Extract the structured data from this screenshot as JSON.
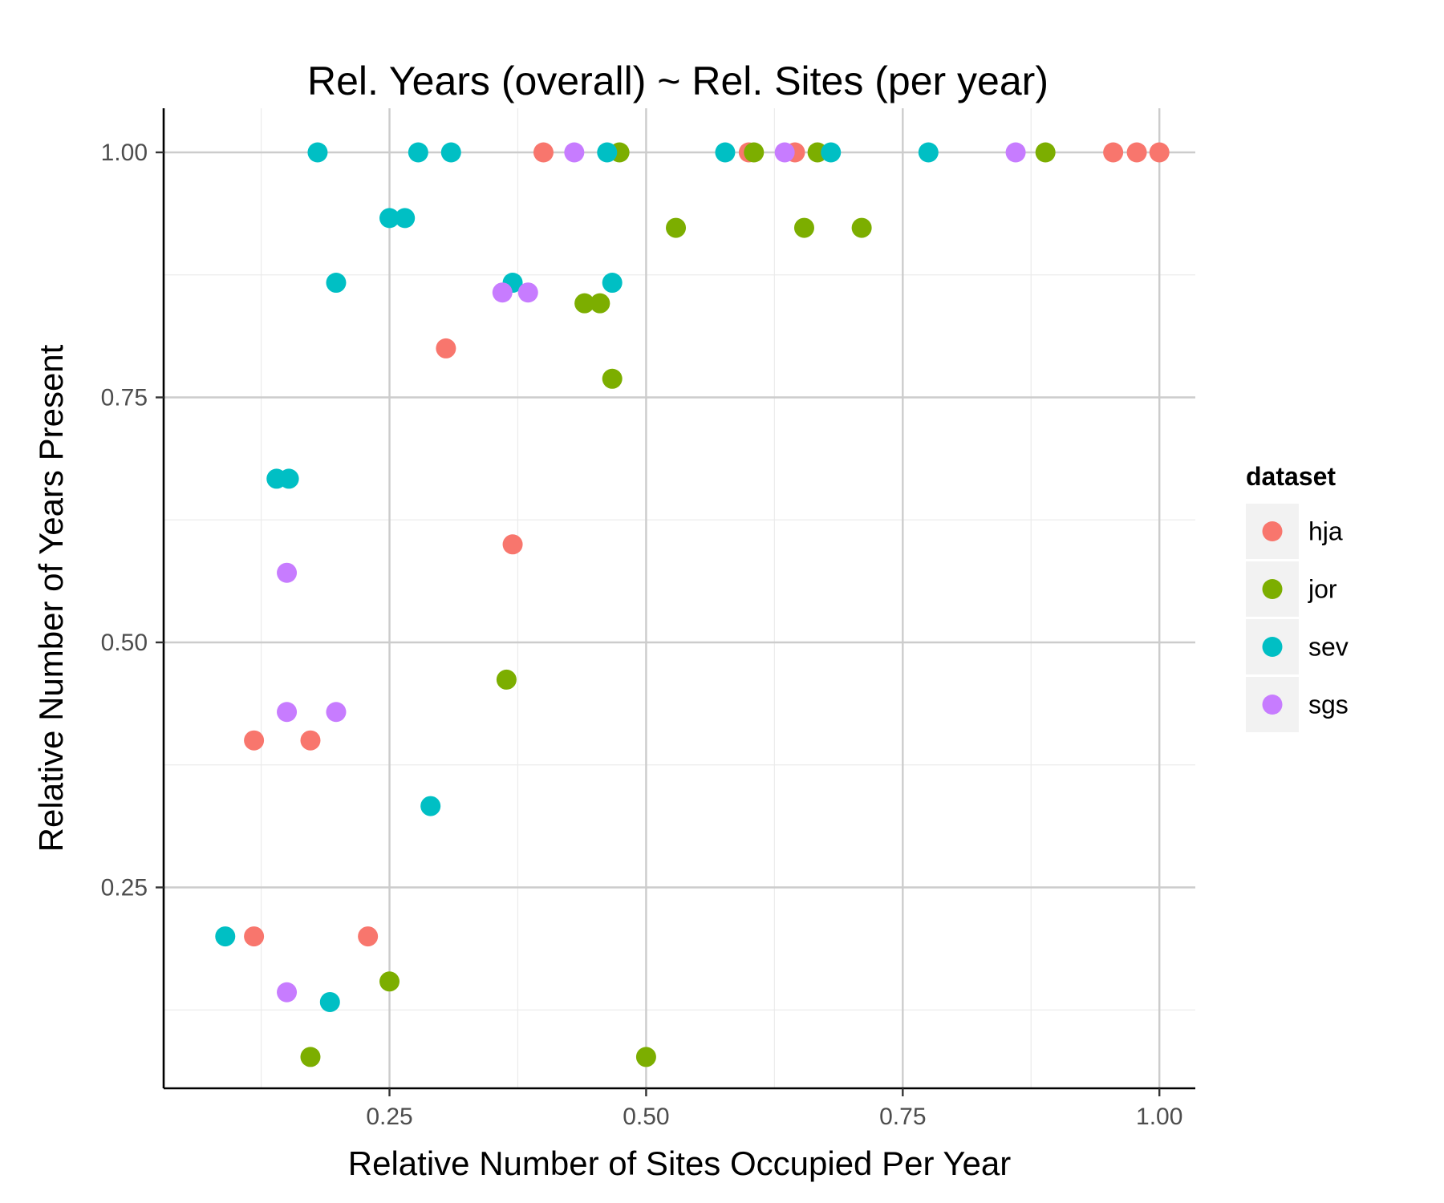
{
  "chart_data": {
    "type": "scatter",
    "title": "Rel. Years (overall) ~ Rel. Sites (per year)",
    "xlabel": "Relative Number of Sites Occupied Per Year",
    "ylabel": "Relative Number of Years Present",
    "xlim": [
      0.03,
      1.035
    ],
    "ylim": [
      0.045,
      1.045
    ],
    "x_ticks": [
      0.25,
      0.5,
      0.75,
      1.0
    ],
    "x_tick_labels": [
      "0.25",
      "0.50",
      "0.75",
      "1.00"
    ],
    "y_ticks": [
      0.25,
      0.5,
      0.75,
      1.0
    ],
    "y_tick_labels": [
      "0.25",
      "0.50",
      "0.75",
      "1.00"
    ],
    "grid": true,
    "legend": {
      "title": "dataset",
      "position": "right"
    },
    "series": [
      {
        "name": "hja",
        "color": "#F8766D",
        "points": [
          [
            0.4,
            1.0
          ],
          [
            0.6,
            1.0
          ],
          [
            0.645,
            1.0
          ],
          [
            0.955,
            1.0
          ],
          [
            0.978,
            1.0
          ],
          [
            1.0,
            1.0
          ],
          [
            0.305,
            0.8
          ],
          [
            0.37,
            0.6
          ],
          [
            0.118,
            0.4
          ],
          [
            0.173,
            0.4
          ],
          [
            0.118,
            0.2
          ],
          [
            0.229,
            0.2
          ]
        ]
      },
      {
        "name": "jor",
        "color": "#7CAE00",
        "points": [
          [
            0.474,
            1.0
          ],
          [
            0.605,
            1.0
          ],
          [
            0.667,
            1.0
          ],
          [
            0.889,
            1.0
          ],
          [
            0.529,
            0.923
          ],
          [
            0.654,
            0.923
          ],
          [
            0.71,
            0.923
          ],
          [
            0.44,
            0.846
          ],
          [
            0.455,
            0.846
          ],
          [
            0.467,
            0.769
          ],
          [
            0.364,
            0.462
          ],
          [
            0.25,
            0.154
          ],
          [
            0.173,
            0.077
          ],
          [
            0.5,
            0.077
          ]
        ]
      },
      {
        "name": "sev",
        "color": "#00BFC4",
        "points": [
          [
            0.18,
            1.0
          ],
          [
            0.278,
            1.0
          ],
          [
            0.31,
            1.0
          ],
          [
            0.462,
            1.0
          ],
          [
            0.577,
            1.0
          ],
          [
            0.68,
            1.0
          ],
          [
            0.775,
            1.0
          ],
          [
            0.25,
            0.933
          ],
          [
            0.265,
            0.933
          ],
          [
            0.198,
            0.867
          ],
          [
            0.37,
            0.867
          ],
          [
            0.467,
            0.867
          ],
          [
            0.14,
            0.667
          ],
          [
            0.152,
            0.667
          ],
          [
            0.29,
            0.333
          ],
          [
            0.09,
            0.2
          ],
          [
            0.192,
            0.133
          ]
        ]
      },
      {
        "name": "sgs",
        "color": "#C77CFF",
        "points": [
          [
            0.43,
            1.0
          ],
          [
            0.635,
            1.0
          ],
          [
            0.86,
            1.0
          ],
          [
            0.36,
            0.857
          ],
          [
            0.385,
            0.857
          ],
          [
            0.15,
            0.571
          ],
          [
            0.15,
            0.429
          ],
          [
            0.198,
            0.429
          ],
          [
            0.15,
            0.143
          ]
        ]
      }
    ]
  }
}
